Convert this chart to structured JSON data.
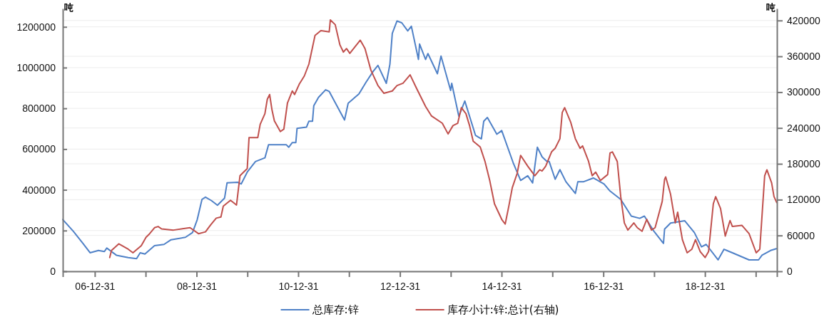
{
  "chart_data": {
    "type": "line",
    "ylabel": "吨",
    "y2label": "吨",
    "xlim": [
      "2006-05-15",
      "2020-05-31"
    ],
    "xticks": [
      {
        "value": "2006-12-31",
        "label": "06-12-31"
      },
      {
        "value": "2007-12-31",
        "label": null
      },
      {
        "value": "2008-12-31",
        "label": "08-12-31"
      },
      {
        "value": "2009-12-31",
        "label": null
      },
      {
        "value": "2010-12-31",
        "label": "10-12-31"
      },
      {
        "value": "2011-12-31",
        "label": null
      },
      {
        "value": "2012-12-31",
        "label": "12-12-31"
      },
      {
        "value": "2013-12-31",
        "label": null
      },
      {
        "value": "2014-12-31",
        "label": "14-12-31"
      },
      {
        "value": "2015-12-31",
        "label": null
      },
      {
        "value": "2016-12-31",
        "label": "16-12-31"
      },
      {
        "value": "2017-12-31",
        "label": null
      },
      {
        "value": "2018-12-31",
        "label": "18-12-31"
      },
      {
        "value": "2019-12-31",
        "label": null
      }
    ],
    "ylim": [
      0,
      1290000
    ],
    "yticks": [
      0,
      200000,
      400000,
      600000,
      800000,
      1000000,
      1200000
    ],
    "y2lim": [
      0,
      440000
    ],
    "y2ticks": [
      0,
      60000,
      120000,
      180000,
      240000,
      300000,
      360000,
      420000
    ],
    "grid": "y",
    "legend": "bottom",
    "marker": "none",
    "line_style": "solid",
    "series": [
      {
        "name": "总库存:锌",
        "color": "#4f81c7",
        "x": [
          "2006-05-15",
          "2006-07-30",
          "2006-10-07",
          "2006-11-27",
          "2007-01-26",
          "2007-03-10",
          "2007-03-27",
          "2007-06-04",
          "2007-08-28",
          "2007-10-27",
          "2007-11-22",
          "2007-12-26",
          "2008-03-04",
          "2008-05-11",
          "2008-07-01",
          "2008-10-12",
          "2008-12-02",
          "2009-01-05",
          "2009-02-08",
          "2009-03-05",
          "2009-04-17",
          "2009-05-30",
          "2009-07-20",
          "2009-08-07",
          "2009-10-23",
          "2009-11-17",
          "2009-12-30",
          "2010-02-27",
          "2010-05-06",
          "2010-06-01",
          "2010-10-07",
          "2010-10-24",
          "2010-11-19",
          "2010-12-14",
          "2010-12-23",
          "2011-03-01",
          "2011-03-18",
          "2011-04-13",
          "2011-04-22",
          "2011-05-26",
          "2011-07-16",
          "2011-08-11",
          "2011-11-29",
          "2011-12-25",
          "2012-03-12",
          "2012-05-02",
          "2012-06-22",
          "2012-07-26",
          "2012-09-24",
          "2012-10-20",
          "2012-11-06",
          "2012-12-10",
          "2013-01-13",
          "2013-02-25",
          "2013-03-23",
          "2013-05-13",
          "2013-05-21",
          "2013-07-03",
          "2013-07-20",
          "2013-09-26",
          "2013-10-22",
          "2013-12-30",
          "2014-01-07",
          "2014-02-27",
          "2014-04-11",
          "2014-06-27",
          "2014-08-08",
          "2014-08-25",
          "2014-09-20",
          "2014-11-27",
          "2015-01-01",
          "2015-03-27",
          "2015-05-17",
          "2015-07-07",
          "2015-08-11",
          "2015-09-14",
          "2015-10-18",
          "2015-11-22",
          "2015-12-08",
          "2016-01-20",
          "2016-02-23",
          "2016-04-06",
          "2016-06-13",
          "2016-07-01",
          "2016-08-12",
          "2016-10-20",
          "2017-01-05",
          "2017-02-17",
          "2017-05-05",
          "2017-07-20",
          "2017-09-18",
          "2017-10-22",
          "2017-12-30",
          "2018-03-08",
          "2018-03-16",
          "2018-04-28",
          "2018-08-08",
          "2018-10-16",
          "2018-12-06",
          "2019-01-09",
          "2019-04-04",
          "2019-05-17",
          "2019-07-16",
          "2019-11-13",
          "2020-01-20",
          "2020-02-14",
          "2020-04-15",
          "2020-05-27"
        ],
        "values": [
          254000,
          196000,
          137000,
          91000,
          102000,
          97000,
          114000,
          79000,
          67000,
          62000,
          91000,
          85000,
          126000,
          132000,
          155000,
          167000,
          190000,
          254000,
          353000,
          364000,
          347000,
          324000,
          359000,
          434000,
          437000,
          429000,
          487000,
          539000,
          557000,
          621000,
          621000,
          609000,
          632000,
          632000,
          702000,
          708000,
          737000,
          737000,
          813000,
          854000,
          891000,
          883000,
          743000,
          825000,
          871000,
          929000,
          982000,
          1011000,
          923000,
          1017000,
          1168000,
          1229000,
          1220000,
          1180000,
          1203000,
          1040000,
          1116000,
          1040000,
          1069000,
          970000,
          1057000,
          888000,
          923000,
          761000,
          836000,
          667000,
          650000,
          737000,
          755000,
          673000,
          691000,
          528000,
          446000,
          469000,
          434000,
          609000,
          562000,
          539000,
          539000,
          452000,
          499000,
          440000,
          382000,
          440000,
          440000,
          458000,
          429000,
          394000,
          353000,
          271000,
          260000,
          271000,
          196000,
          137000,
          207000,
          237000,
          248000,
          190000,
          120000,
          132000,
          56000,
          108000,
          91000,
          56000,
          56000,
          79000,
          102000,
          111000
        ]
      },
      {
        "name": "库存小计:锌:总计(右轴)",
        "color": "#c0504d",
        "axis": "y2",
        "x": [
          "2007-04-17",
          "2007-04-30",
          "2007-06-21",
          "2007-08-28",
          "2007-10-01",
          "2007-11-30",
          "2008-01-03",
          "2008-01-29",
          "2008-03-04",
          "2008-03-30",
          "2008-04-24",
          "2008-07-18",
          "2008-11-14",
          "2009-01-14",
          "2009-03-05",
          "2009-04-09",
          "2009-05-21",
          "2009-06-24",
          "2009-07-11",
          "2009-09-01",
          "2009-10-14",
          "2009-11-08",
          "2009-12-30",
          "2010-01-12",
          "2010-03-16",
          "2010-04-02",
          "2010-05-06",
          "2010-05-23",
          "2010-06-09",
          "2010-06-26",
          "2010-07-13",
          "2010-08-25",
          "2010-09-19",
          "2010-10-15",
          "2010-11-19",
          "2010-12-05",
          "2011-01-09",
          "2011-02-13",
          "2011-03-18",
          "2011-05-01",
          "2011-06-12",
          "2011-08-11",
          "2011-08-19",
          "2011-09-23",
          "2011-10-27",
          "2011-11-21",
          "2011-12-13",
          "2012-01-06",
          "2012-03-21",
          "2012-04-24",
          "2012-06-05",
          "2012-07-26",
          "2012-09-07",
          "2012-11-06",
          "2012-12-10",
          "2013-01-22",
          "2013-03-14",
          "2013-04-26",
          "2013-07-03",
          "2013-08-15",
          "2013-10-31",
          "2013-12-12",
          "2014-01-16",
          "2014-02-19",
          "2014-03-17",
          "2014-04-19",
          "2014-05-15",
          "2014-06-10",
          "2014-07-31",
          "2014-09-03",
          "2014-10-07",
          "2014-11-10",
          "2015-01-01",
          "2015-01-26",
          "2015-02-21",
          "2015-03-18",
          "2015-04-22",
          "2015-05-17",
          "2015-07-07",
          "2015-08-27",
          "2015-10-01",
          "2015-10-18",
          "2015-11-13",
          "2015-12-25",
          "2016-01-20",
          "2016-02-23",
          "2016-03-11",
          "2016-03-28",
          "2016-05-10",
          "2016-06-13",
          "2016-07-17",
          "2016-08-04",
          "2016-09-16",
          "2016-10-12",
          "2016-11-06",
          "2016-12-10",
          "2017-01-31",
          "2017-02-17",
          "2017-03-06",
          "2017-04-10",
          "2017-05-05",
          "2017-05-31",
          "2017-06-25",
          "2017-08-07",
          "2017-09-01",
          "2017-10-05",
          "2017-11-08",
          "2017-12-12",
          "2018-01-07",
          "2018-02-27",
          "2018-03-16",
          "2018-03-24",
          "2018-04-28",
          "2018-05-15",
          "2018-06-01",
          "2018-06-18",
          "2018-07-22",
          "2018-08-25",
          "2018-09-28",
          "2018-10-24",
          "2018-11-27",
          "2019-01-01",
          "2019-01-26",
          "2019-03-01",
          "2019-03-18",
          "2019-04-22",
          "2019-05-26",
          "2019-06-29",
          "2019-07-16",
          "2019-09-22",
          "2019-11-13",
          "2020-01-03",
          "2020-01-29",
          "2020-03-04",
          "2020-03-20",
          "2020-04-23",
          "2020-05-10",
          "2020-05-30"
        ],
        "values": [
          23000,
          35000,
          46000,
          37000,
          31000,
          43000,
          57000,
          63000,
          73000,
          75000,
          71000,
          69000,
          73000,
          63000,
          66000,
          77000,
          89000,
          91000,
          109000,
          119000,
          111000,
          160000,
          172000,
          224000,
          224000,
          246000,
          264000,
          288000,
          296000,
          270000,
          252000,
          234000,
          238000,
          282000,
          302000,
          296000,
          314000,
          327000,
          347000,
          395000,
          403000,
          401000,
          421000,
          413000,
          379000,
          367000,
          373000,
          365000,
          387000,
          373000,
          337000,
          311000,
          298000,
          302000,
          311000,
          315000,
          329000,
          308000,
          276000,
          260000,
          248000,
          230000,
          244000,
          248000,
          274000,
          264000,
          244000,
          218000,
          208000,
          184000,
          152000,
          113000,
          87000,
          79000,
          109000,
          140000,
          164000,
          194000,
          176000,
          160000,
          170000,
          168000,
          176000,
          200000,
          206000,
          222000,
          266000,
          274000,
          250000,
          222000,
          206000,
          210000,
          184000,
          160000,
          166000,
          152000,
          162000,
          198000,
          200000,
          184000,
          125000,
          81000,
          69000,
          81000,
          73000,
          67000,
          87000,
          69000,
          73000,
          117000,
          154000,
          158000,
          129000,
          105000,
          81000,
          99000,
          53000,
          31000,
          37000,
          53000,
          33000,
          23000,
          33000,
          113000,
          125000,
          105000,
          59000,
          85000,
          75000,
          77000,
          63000,
          31000,
          37000,
          160000,
          170000,
          148000,
          125000,
          115000
        ]
      }
    ]
  }
}
